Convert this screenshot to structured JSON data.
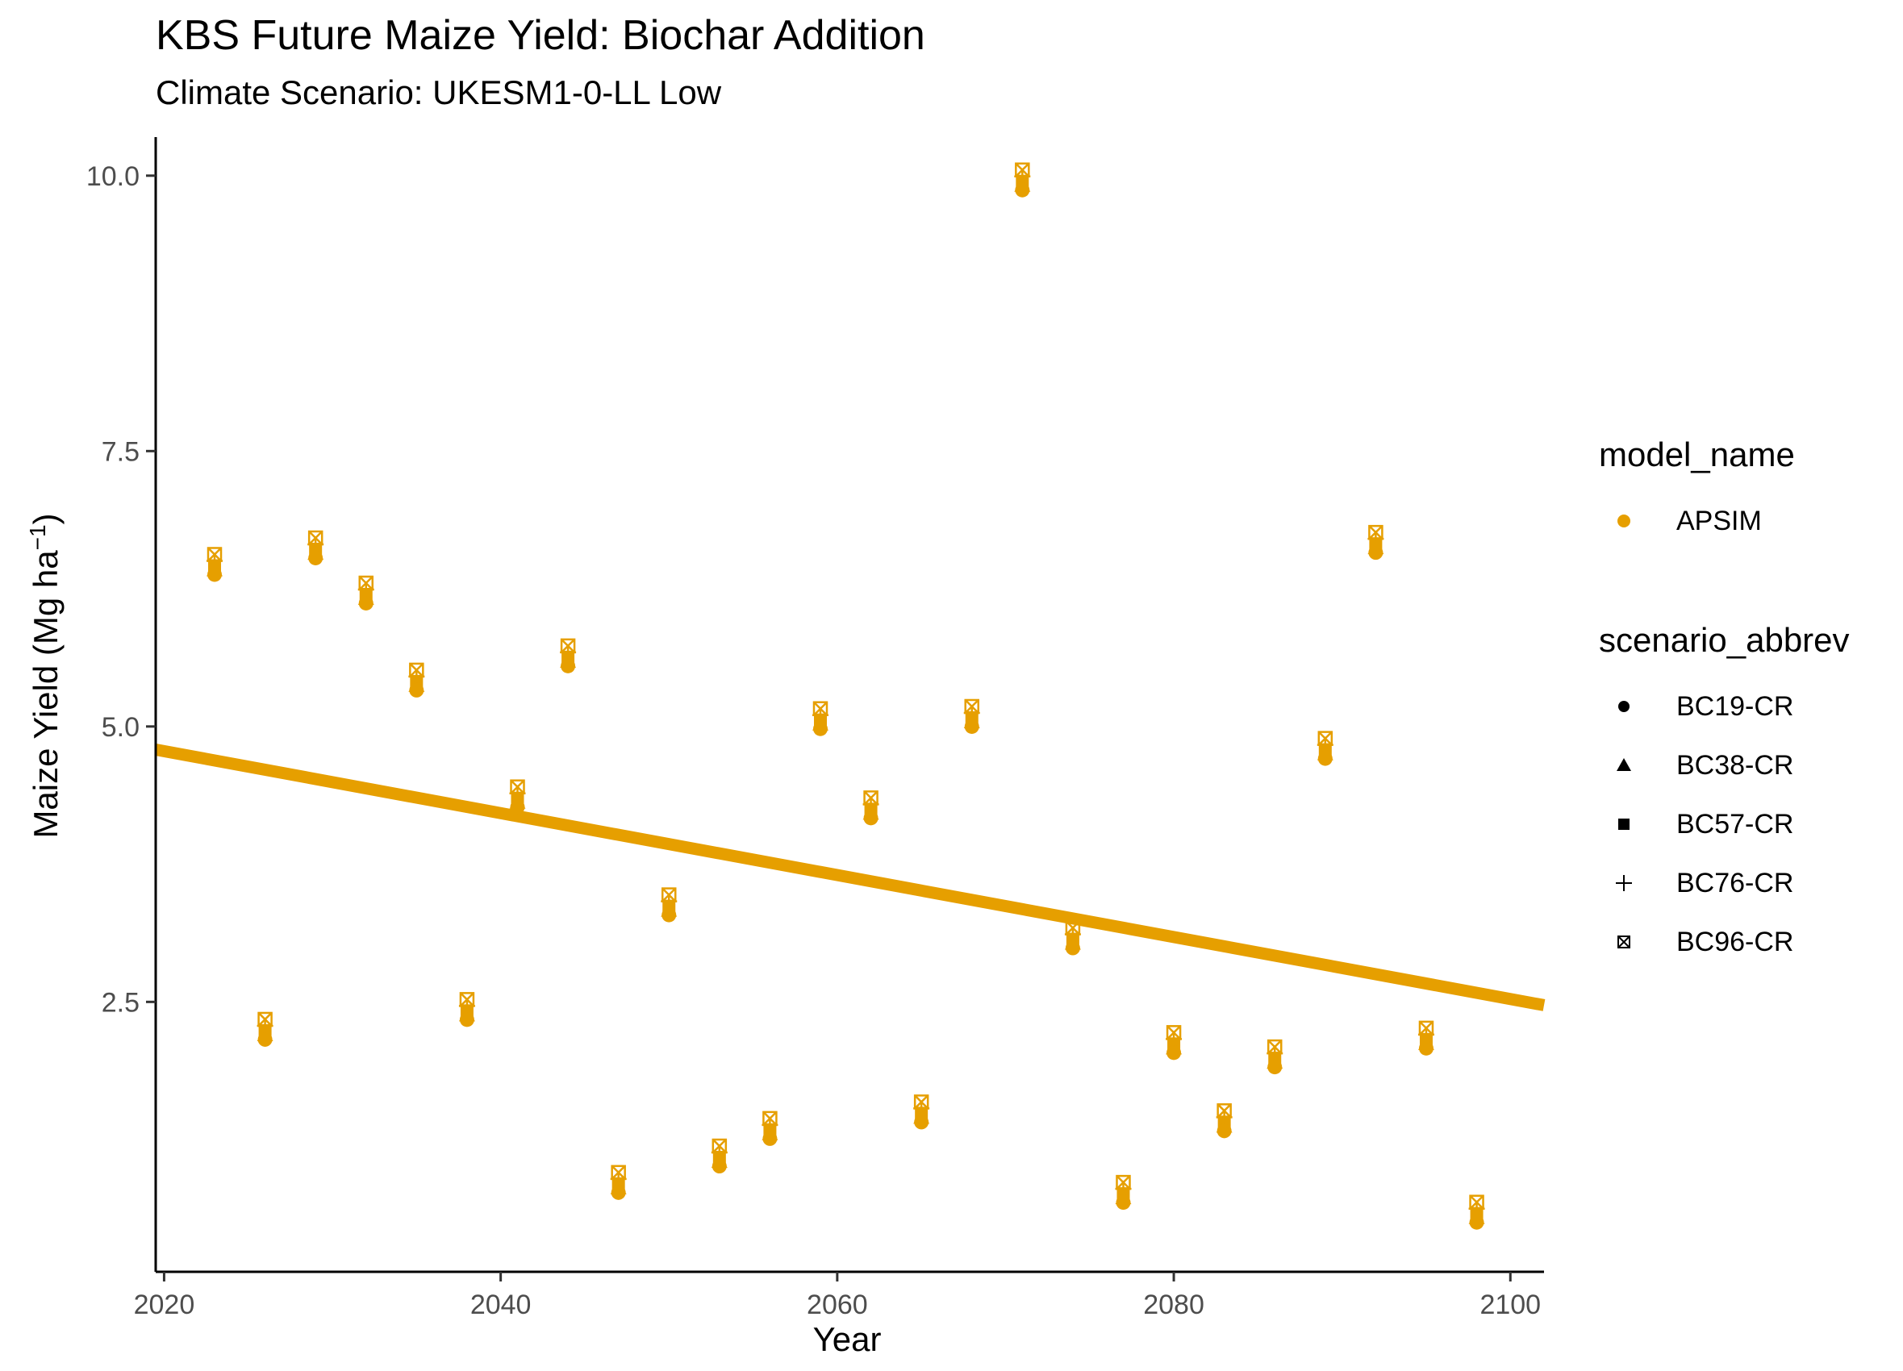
{
  "chart_data": {
    "type": "scatter",
    "title": "KBS Future Maize Yield: Biochar Addition",
    "subtitle": "Climate Scenario: UKESM1-0-LL Low",
    "xlabel": "Year",
    "ylabel": {
      "main": "Maize Yield (Mg ha",
      "sup": "−1",
      "close": ")"
    },
    "xlim": [
      2019.5,
      2102
    ],
    "ylim": [
      0.05,
      10.35
    ],
    "x_ticks": [
      2020,
      2040,
      2060,
      2080,
      2100
    ],
    "y_ticks": [
      2.5,
      5.0,
      7.5,
      10.0
    ],
    "y_tick_labels": [
      "2.5",
      "5.0",
      "7.5",
      "10.0"
    ],
    "grid": false,
    "legend_position": "right",
    "color": "#E69F00",
    "legend": {
      "color_title": "model_name",
      "color_items": [
        {
          "label": "APSIM",
          "color": "#E69F00"
        }
      ],
      "shape_title": "scenario_abbrev",
      "shape_items": [
        {
          "label": "BC19-CR",
          "shape": "circle"
        },
        {
          "label": "BC38-CR",
          "shape": "triangle"
        },
        {
          "label": "BC57-CR",
          "shape": "square"
        },
        {
          "label": "BC76-CR",
          "shape": "plus"
        },
        {
          "label": "BC96-CR",
          "shape": "square-x"
        }
      ]
    },
    "points": [
      {
        "year": 2023,
        "yield": 6.43
      },
      {
        "year": 2026,
        "yield": 2.21
      },
      {
        "year": 2029,
        "yield": 6.58
      },
      {
        "year": 2032,
        "yield": 6.17
      },
      {
        "year": 2035,
        "yield": 5.38
      },
      {
        "year": 2038,
        "yield": 2.39
      },
      {
        "year": 2041,
        "yield": 4.32
      },
      {
        "year": 2044,
        "yield": 5.6
      },
      {
        "year": 2047,
        "yield": 0.82
      },
      {
        "year": 2050,
        "yield": 3.34
      },
      {
        "year": 2053,
        "yield": 1.06
      },
      {
        "year": 2056,
        "yield": 1.31
      },
      {
        "year": 2059,
        "yield": 5.03
      },
      {
        "year": 2062,
        "yield": 4.22
      },
      {
        "year": 2065,
        "yield": 1.46
      },
      {
        "year": 2068,
        "yield": 5.05
      },
      {
        "year": 2071,
        "yield": 9.92
      },
      {
        "year": 2074,
        "yield": 3.04
      },
      {
        "year": 2077,
        "yield": 0.73
      },
      {
        "year": 2080,
        "yield": 2.09
      },
      {
        "year": 2083,
        "yield": 1.38
      },
      {
        "year": 2086,
        "yield": 1.96
      },
      {
        "year": 2089,
        "yield": 4.76
      },
      {
        "year": 2092,
        "yield": 6.63
      },
      {
        "year": 2095,
        "yield": 2.13
      },
      {
        "year": 2098,
        "yield": 0.55
      }
    ],
    "trend_line": {
      "x": [
        2019.5,
        2102
      ],
      "y": [
        4.79,
        2.47
      ]
    }
  }
}
